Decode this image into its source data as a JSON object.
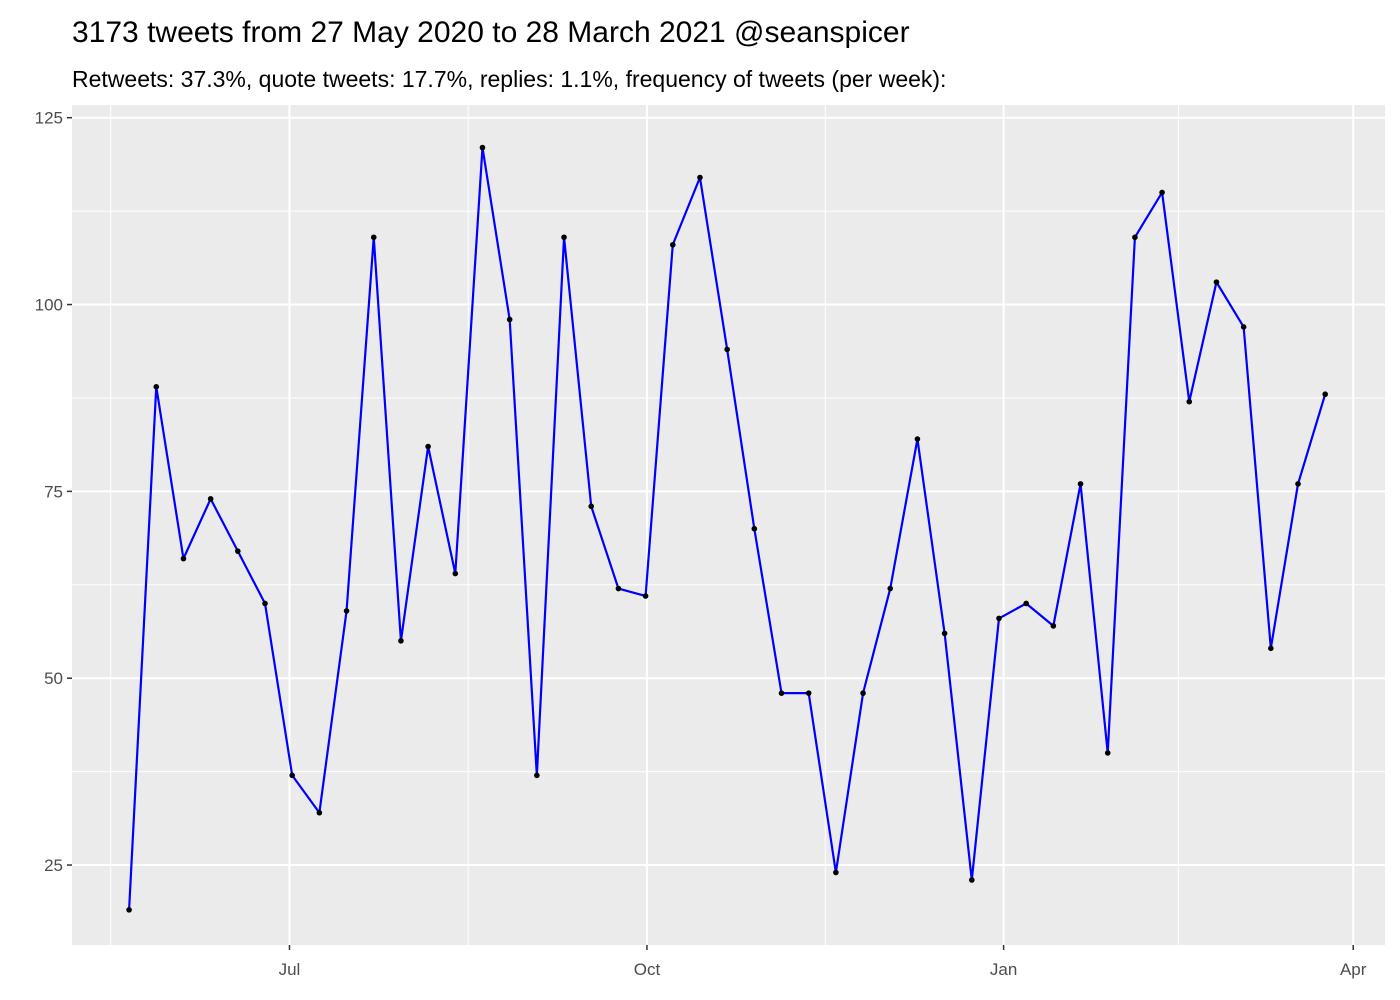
{
  "chart_data": {
    "type": "line",
    "title": "3173 tweets from 27 May 2020 to 28 March 2021 @seanspicer",
    "subtitle": "Retweets: 37.3%, quote tweets: 17.7%, replies: 1.1%, frequency of tweets (per week):",
    "x": [
      1,
      2,
      3,
      4,
      5,
      6,
      7,
      8,
      9,
      10,
      11,
      12,
      13,
      14,
      15,
      16,
      17,
      18,
      19,
      20,
      21,
      22,
      23,
      24,
      25,
      26,
      27,
      28,
      29,
      30,
      31,
      32,
      33,
      34,
      35,
      36,
      37,
      38,
      39,
      40,
      41,
      42,
      43,
      44,
      45
    ],
    "values": [
      19,
      89,
      66,
      74,
      67,
      60,
      37,
      32,
      59,
      109,
      55,
      81,
      64,
      121,
      98,
      37,
      109,
      73,
      62,
      61,
      108,
      117,
      94,
      70,
      48,
      48,
      24,
      48,
      62,
      82,
      56,
      23,
      58,
      60,
      57,
      76,
      40,
      109,
      115,
      87,
      103,
      97,
      54,
      76,
      88
    ],
    "color": "#0000ff",
    "point_color": "#000000",
    "xlim": [
      -1.1,
      47.2
    ],
    "xticks": [
      {
        "value": 6.9,
        "label": "Jul"
      },
      {
        "value": 20.05,
        "label": "Oct"
      },
      {
        "value": 33.17,
        "label": "Jan"
      },
      {
        "value": 46.03,
        "label": "Apr"
      }
    ],
    "ylim": [
      14.3,
      126.7
    ],
    "yticks": [
      25,
      50,
      75,
      100,
      125
    ],
    "grid": true
  }
}
